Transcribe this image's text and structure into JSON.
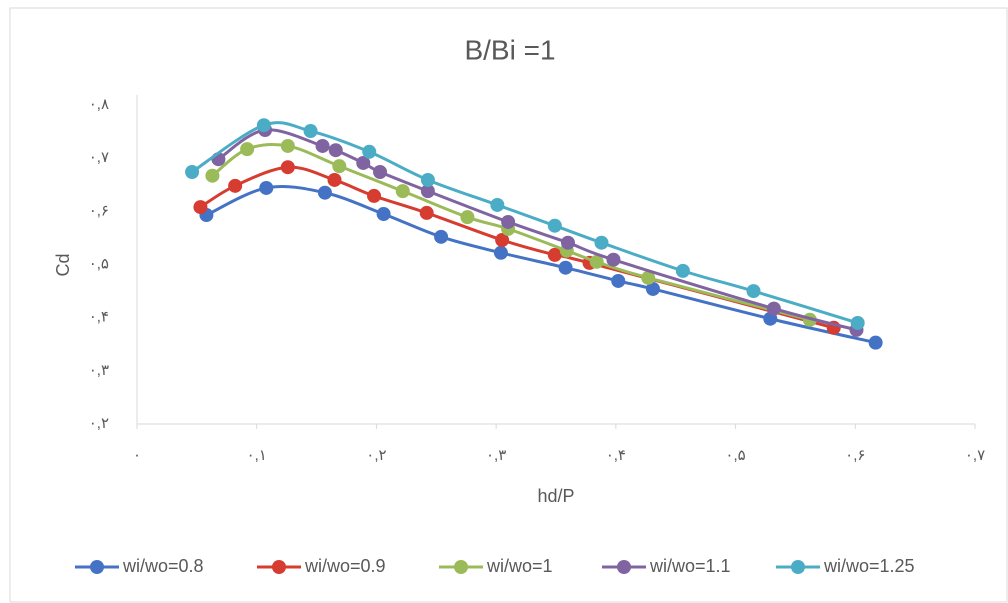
{
  "chart_data": {
    "type": "line",
    "title": "B/Bi =1",
    "x_label": "hd/P",
    "y_label": "Cd",
    "xlim": [
      0,
      0.7
    ],
    "ylim": [
      0.2,
      0.8
    ],
    "grid": false,
    "smooth": true,
    "legend": "bottom",
    "xticks": [
      {
        "value": 0,
        "label": "٠"
      },
      {
        "value": 0.1,
        "label": "٠,١"
      },
      {
        "value": 0.2,
        "label": "٠,٢"
      },
      {
        "value": 0.3,
        "label": "٠,٣"
      },
      {
        "value": 0.4,
        "label": "٠,۴"
      },
      {
        "value": 0.5,
        "label": "٠,۵"
      },
      {
        "value": 0.6,
        "label": "٠,۶"
      },
      {
        "value": 0.7,
        "label": "٠,٧"
      }
    ],
    "yticks": [
      {
        "value": 0.2,
        "label": "٠,٢"
      },
      {
        "value": 0.3,
        "label": "٠,٣"
      },
      {
        "value": 0.4,
        "label": "٠,۴"
      },
      {
        "value": 0.5,
        "label": "٠,۵"
      },
      {
        "value": 0.6,
        "label": "٠,۶"
      },
      {
        "value": 0.7,
        "label": "٠,٧"
      },
      {
        "value": 0.8,
        "label": "٠,٨"
      }
    ],
    "series": [
      {
        "name": "wi/wo=0.8",
        "color": "#4472c4",
        "x": [
          0.058,
          0.108,
          0.157,
          0.206,
          0.254,
          0.304,
          0.358,
          0.402,
          0.431,
          0.529,
          0.617
        ],
        "values": [
          0.593,
          0.644,
          0.635,
          0.595,
          0.552,
          0.522,
          0.494,
          0.469,
          0.454,
          0.398,
          0.353
        ]
      },
      {
        "name": "wi/wo=0.9",
        "color": "#d63c2f",
        "x": [
          0.053,
          0.082,
          0.126,
          0.165,
          0.198,
          0.242,
          0.305,
          0.349,
          0.378,
          0.582
        ],
        "values": [
          0.608,
          0.648,
          0.683,
          0.659,
          0.629,
          0.597,
          0.546,
          0.518,
          0.503,
          0.381
        ]
      },
      {
        "name": "wi/wo=1",
        "color": "#9bbb59",
        "x": [
          0.063,
          0.092,
          0.126,
          0.169,
          0.222,
          0.276,
          0.31,
          0.359,
          0.384,
          0.427,
          0.562
        ],
        "values": [
          0.667,
          0.717,
          0.723,
          0.685,
          0.638,
          0.589,
          0.567,
          0.526,
          0.505,
          0.475,
          0.396
        ]
      },
      {
        "name": "wi/wo=1.1",
        "color": "#8064a2",
        "x": [
          0.068,
          0.107,
          0.155,
          0.166,
          0.189,
          0.203,
          0.243,
          0.31,
          0.36,
          0.398,
          0.532,
          0.601
        ],
        "values": [
          0.698,
          0.753,
          0.723,
          0.715,
          0.691,
          0.674,
          0.638,
          0.58,
          0.541,
          0.509,
          0.417,
          0.377
        ]
      },
      {
        "name": "wi/wo=1.25",
        "color": "#4bacc6",
        "x": [
          0.046,
          0.106,
          0.145,
          0.194,
          0.243,
          0.301,
          0.349,
          0.388,
          0.456,
          0.515,
          0.602
        ],
        "values": [
          0.674,
          0.762,
          0.751,
          0.712,
          0.659,
          0.612,
          0.573,
          0.541,
          0.488,
          0.45,
          0.39
        ]
      }
    ]
  }
}
